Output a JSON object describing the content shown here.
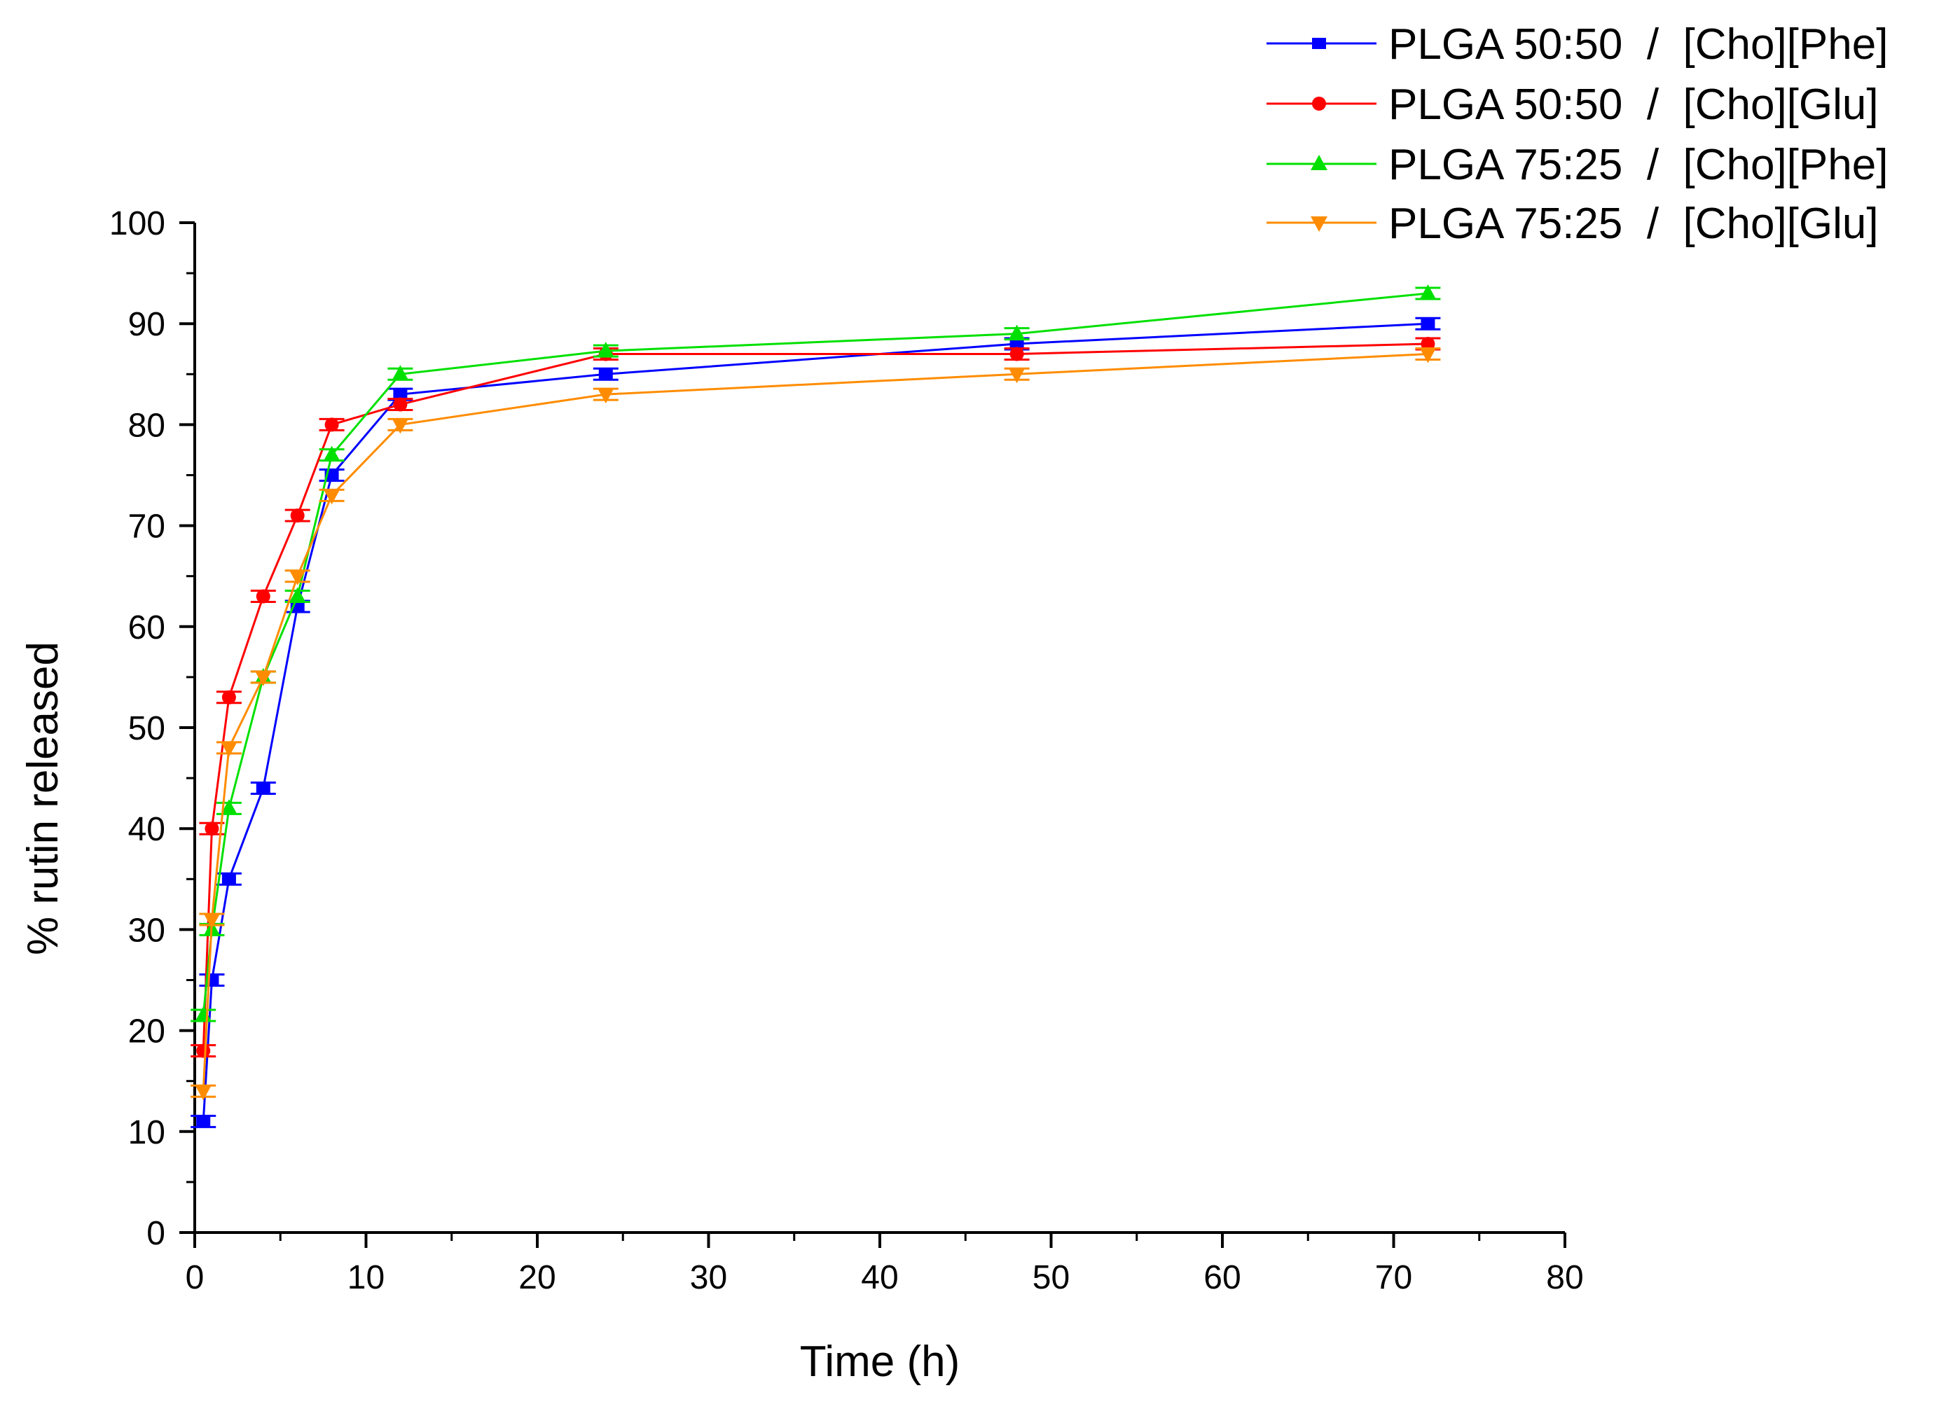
{
  "chart_data": {
    "type": "line",
    "title": "",
    "xlabel": "Time (h)",
    "ylabel": "% rutin released",
    "xlim": [
      0,
      80
    ],
    "ylim": [
      0,
      100
    ],
    "x_ticks": [
      0,
      10,
      20,
      30,
      40,
      50,
      60,
      70,
      80
    ],
    "y_ticks": [
      0,
      10,
      20,
      30,
      40,
      50,
      60,
      70,
      80,
      90,
      100
    ],
    "grid": false,
    "legend_position": "top-right",
    "x": [
      0.5,
      1,
      2,
      4,
      6,
      8,
      12,
      24,
      48,
      72
    ],
    "series": [
      {
        "name": "PLGA 50:50  /  [Cho][Phe]",
        "color": "#0000ff",
        "marker": "square",
        "values": [
          11,
          25,
          35,
          44,
          62,
          75,
          83,
          85,
          88,
          90
        ]
      },
      {
        "name": "PLGA 50:50  /  [Cho][Glu]",
        "color": "#ff0000",
        "marker": "circle",
        "values": [
          18,
          40,
          53,
          63,
          71,
          80,
          82,
          87,
          87,
          88
        ]
      },
      {
        "name": "PLGA 75:25  /  [Cho][Phe]",
        "color": "#00e000",
        "marker": "triangle-up",
        "values": [
          21.5,
          30,
          42,
          55,
          63,
          77,
          85,
          87.3,
          89,
          93
        ]
      },
      {
        "name": "PLGA 75:25  /  [Cho][Glu]",
        "color": "#ff8c00",
        "marker": "triangle-down",
        "values": [
          14,
          31,
          48,
          55,
          65,
          73,
          80,
          83,
          85,
          87
        ]
      }
    ]
  }
}
